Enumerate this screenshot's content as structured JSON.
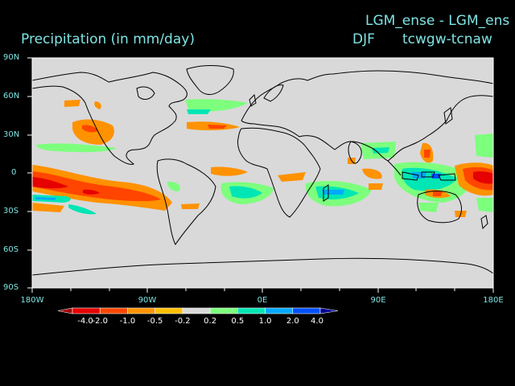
{
  "header": {
    "title": "Precipitation (in mm/day)",
    "experiment": "LGM_ense - LGM_ens",
    "season": "DJF",
    "code": "tcwgw-tcnaw"
  },
  "map": {
    "projection": "cylindrical equidistant",
    "lon_range": [
      -180,
      180
    ],
    "lat_range": [
      -90,
      90
    ],
    "background_color": "#d9d9d9",
    "coastline_color": "#000000",
    "lat_labels": [
      "90N",
      "60N",
      "30N",
      "0",
      "30S",
      "60S",
      "90S"
    ],
    "lon_labels": [
      "180W",
      "90W",
      "0E",
      "90E",
      "180E"
    ]
  },
  "colorbar": {
    "levels": [
      "-4.0",
      "-2.0",
      "-1.0",
      "-0.5",
      "-0.2",
      "0.2",
      "0.5",
      "1.0",
      "2.0",
      "4.0"
    ],
    "colors": [
      "#a00000",
      "#e60000",
      "#ff4500",
      "#ff9200",
      "#ffc000",
      "#d9d9d9",
      "#7dff7d",
      "#00e6b4",
      "#00aaff",
      "#0050ff",
      "#000096"
    ]
  }
}
